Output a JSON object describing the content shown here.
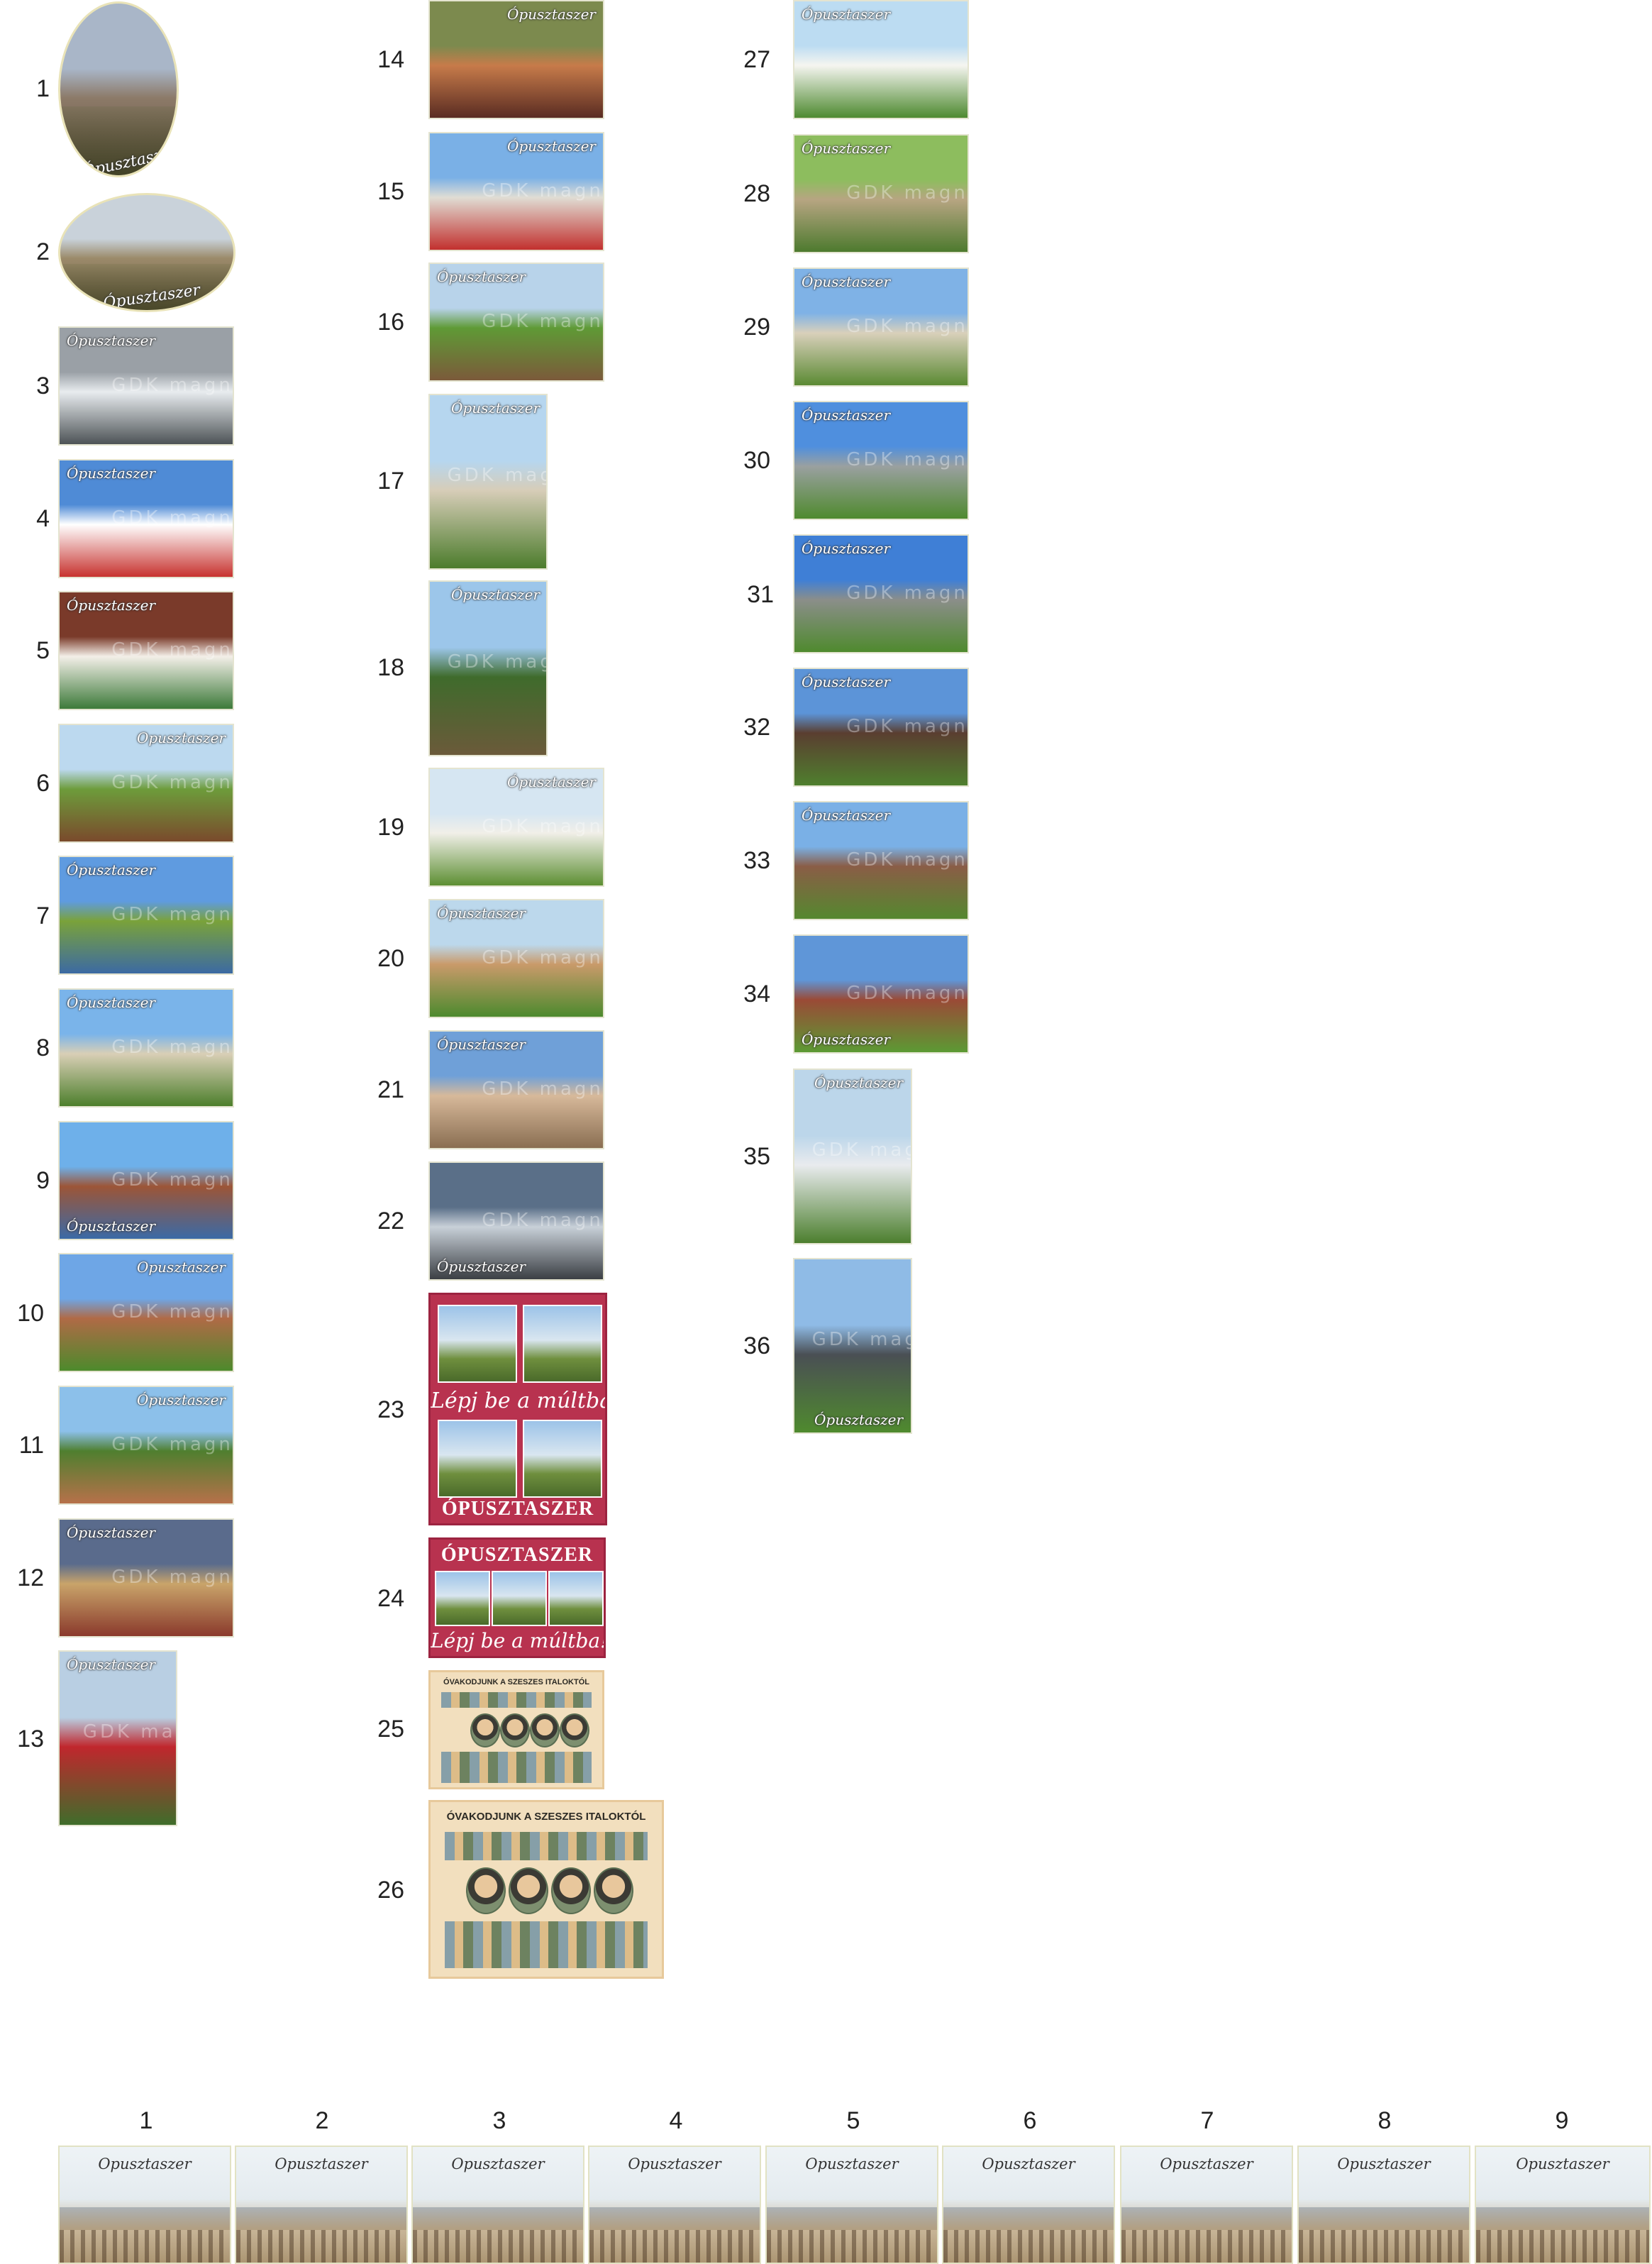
{
  "caption_text": "Opusztaszer",
  "watermark_text": "GDK magnet",
  "column1": [
    {
      "num": "1",
      "caption": "Ópusztaszer",
      "colors": [
        "#a9b6c8",
        "#8c7a68",
        "#5e4a3a"
      ]
    },
    {
      "num": "2",
      "caption": "Ópusztaszer",
      "colors": [
        "#c9d2da",
        "#9b8a6a",
        "#6b5440"
      ]
    },
    {
      "num": "3",
      "caption": "Ópusztaszer",
      "colors": [
        "#9aa0a6",
        "#e8ecef",
        "#4d5356"
      ]
    },
    {
      "num": "4",
      "caption": "Ópusztaszer",
      "colors": [
        "#4f8bd6",
        "#ffffff",
        "#c7332f"
      ]
    },
    {
      "num": "5",
      "caption": "Ópusztaszer",
      "colors": [
        "#7a3a2a",
        "#f3efe8",
        "#3d7a3a"
      ]
    },
    {
      "num": "6",
      "caption": "Opusztaszer",
      "colors": [
        "#bcd9ef",
        "#6d9c3b",
        "#7a4a2c"
      ]
    },
    {
      "num": "7",
      "caption": "Ópusztaszer",
      "colors": [
        "#5f9be0",
        "#7aa23a",
        "#3c6aa3"
      ]
    },
    {
      "num": "8",
      "caption": "Ópusztaszer",
      "colors": [
        "#7ab4ea",
        "#d9cfb6",
        "#4d7f2c"
      ]
    },
    {
      "num": "9",
      "caption": "Ópusztaszer",
      "colors": [
        "#6eb0ea",
        "#9c5537",
        "#3b6aa6"
      ]
    },
    {
      "num": "10",
      "caption": "Opusztaszer",
      "colors": [
        "#6ea6e6",
        "#b06a46",
        "#4d8a2c"
      ]
    },
    {
      "num": "11",
      "caption": "Ópusztaszer",
      "colors": [
        "#8cc0ea",
        "#4f7f2f",
        "#b7714a"
      ]
    },
    {
      "num": "12",
      "caption": "Ópusztaszer",
      "colors": [
        "#5a6b8c",
        "#c9a46a",
        "#8a3a2c"
      ]
    },
    {
      "num": "13",
      "caption": "Ópusztaszer",
      "colors": [
        "#b9cfe3",
        "#c0272d",
        "#3f6d2b"
      ]
    }
  ],
  "column2": [
    {
      "num": "14",
      "caption": "Ópusztaszer",
      "colors": [
        "#7c8a4e",
        "#c77b4a",
        "#5a2c22"
      ]
    },
    {
      "num": "15",
      "caption": "Ópusztaszer",
      "colors": [
        "#7ab0e6",
        "#e0ddd4",
        "#c2302e"
      ]
    },
    {
      "num": "16",
      "caption": "Ópusztaszer",
      "colors": [
        "#b8d3ea",
        "#5f9a36",
        "#7b5a3a"
      ]
    },
    {
      "num": "17",
      "caption": "Ópusztaszer",
      "colors": [
        "#b6d6ef",
        "#d7cdb8",
        "#4c7c2c"
      ]
    },
    {
      "num": "18",
      "caption": "Ópusztaszer",
      "colors": [
        "#9cc6ea",
        "#3f6b2c",
        "#6b5a3a"
      ]
    },
    {
      "num": "19",
      "caption": "Ópusztaszer",
      "colors": [
        "#d6e6f2",
        "#f1efe8",
        "#5d8f33"
      ]
    },
    {
      "num": "20",
      "caption": "Ópusztaszer",
      "colors": [
        "#bcd8ec",
        "#c99a6a",
        "#4d8a2e"
      ]
    },
    {
      "num": "21",
      "caption": "Ópusztaszer",
      "colors": [
        "#6fa0d8",
        "#d7b99a",
        "#8a6e52"
      ]
    },
    {
      "num": "22",
      "caption": "Ópusztaszer",
      "colors": [
        "#5a6f88",
        "#c8d0d8",
        "#3b3f44"
      ]
    }
  ],
  "poster23": {
    "num": "23",
    "slogan": "Lépj be a múltba!",
    "title": "ÓPUSZTASZER"
  },
  "poster24": {
    "num": "24",
    "slogan": "Lépj be a múltba!",
    "title": "ÓPUSZTASZER"
  },
  "vintage25": {
    "num": "25",
    "title": "ÓVAKODJUNK A SZESZES ITALOKTÓL"
  },
  "vintage26": {
    "num": "26",
    "title": "ÓVAKODJUNK A SZESZES ITALOKTÓL"
  },
  "column3": [
    {
      "num": "27",
      "caption": "Ópusztaszer",
      "colors": [
        "#bcdcf2",
        "#f5f5f0",
        "#4e8a30"
      ]
    },
    {
      "num": "28",
      "caption": "Ópusztaszer",
      "colors": [
        "#8dbd5e",
        "#b7a582",
        "#4d7a2e"
      ]
    },
    {
      "num": "29",
      "caption": "Ópusztaszer",
      "colors": [
        "#7fb2e6",
        "#d9d0bb",
        "#5b8a33"
      ]
    },
    {
      "num": "30",
      "caption": "Ópusztaszer",
      "colors": [
        "#4f8fde",
        "#9aa0a0",
        "#4f8a2e"
      ]
    },
    {
      "num": "31",
      "caption": "Ópusztaszer",
      "colors": [
        "#3f7fd6",
        "#8b8e8a",
        "#4f8a2e"
      ]
    },
    {
      "num": "32",
      "caption": "Ópusztaszer",
      "colors": [
        "#5c94d8",
        "#5a3e30",
        "#4f7f2e"
      ]
    },
    {
      "num": "33",
      "caption": "Ópusztaszer",
      "colors": [
        "#7ab0e6",
        "#8a5d46",
        "#55882f"
      ]
    },
    {
      "num": "34",
      "caption": "Ópusztaszer",
      "colors": [
        "#5f96d8",
        "#9a4a36",
        "#5c9a34"
      ]
    },
    {
      "num": "35",
      "caption": "Ópusztaszer",
      "colors": [
        "#bcd6ea",
        "#e9ebee",
        "#4c7f2e"
      ]
    },
    {
      "num": "36",
      "caption": "Ópusztaszer",
      "colors": [
        "#8fbbe6",
        "#4a4f54",
        "#4f8a2e"
      ]
    }
  ],
  "panorama": [
    {
      "num": "1",
      "caption": "Opusztaszer"
    },
    {
      "num": "2",
      "caption": "Opusztaszer"
    },
    {
      "num": "3",
      "caption": "Opusztaszer"
    },
    {
      "num": "4",
      "caption": "Opusztaszer"
    },
    {
      "num": "5",
      "caption": "Opusztaszer"
    },
    {
      "num": "6",
      "caption": "Opusztaszer"
    },
    {
      "num": "7",
      "caption": "Opusztaszer"
    },
    {
      "num": "8",
      "caption": "Opusztaszer"
    },
    {
      "num": "9",
      "caption": "Opusztaszer"
    }
  ]
}
